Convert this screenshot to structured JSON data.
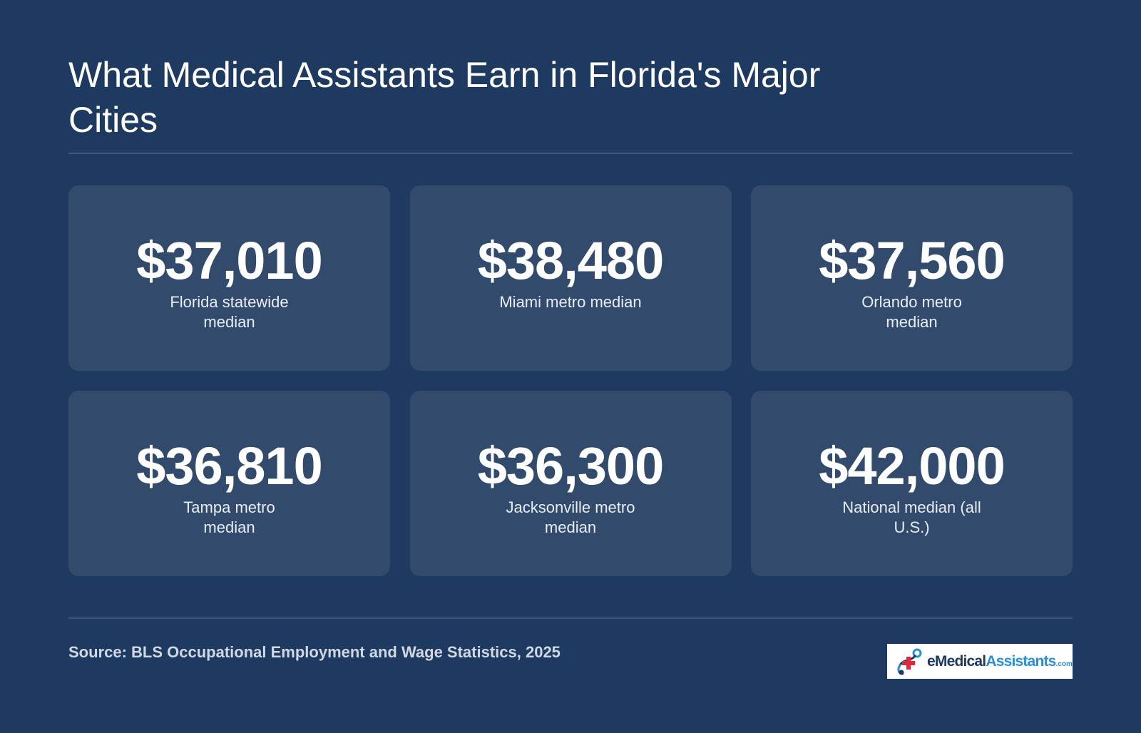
{
  "header": {
    "title": "What Medical Assistants Earn in Florida's Major Cities"
  },
  "cards": [
    {
      "value": "$37,010",
      "label": "Florida statewide median"
    },
    {
      "value": "$38,480",
      "label": "Miami metro median"
    },
    {
      "value": "$37,560",
      "label": "Orlando metro median"
    },
    {
      "value": "$36,810",
      "label": "Tampa metro median"
    },
    {
      "value": "$36,300",
      "label": "Jacksonville metro median"
    },
    {
      "value": "$42,000",
      "label": "National median (all U.S.)"
    }
  ],
  "footer": {
    "source": "Source: BLS Occupational Employment and Wage Statistics, 2025",
    "logo": {
      "e": "e",
      "medical": "Medical",
      "assistants": "Assistants",
      "com": ".com",
      "icon": "medical-cross-logo-icon"
    }
  },
  "colors": {
    "background": "#1f3a60",
    "card": "#324b6d",
    "accent_red": "#e0293a",
    "accent_blue": "#2a8fd6"
  }
}
